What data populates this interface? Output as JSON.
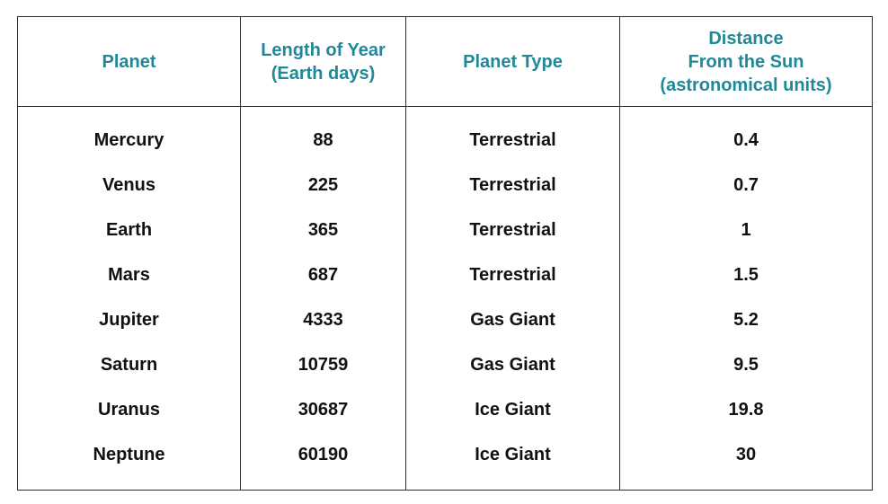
{
  "table": {
    "headers": [
      "Planet",
      "Length of Year\n(Earth days)",
      "Planet Type",
      "Distance\nFrom the Sun\n(astronomical units)"
    ],
    "rows": [
      [
        "Mercury",
        "88",
        "Terrestrial",
        "0.4"
      ],
      [
        "Venus",
        "225",
        "Terrestrial",
        "0.7"
      ],
      [
        "Earth",
        "365",
        "Terrestrial",
        "1"
      ],
      [
        "Mars",
        "687",
        "Terrestrial",
        "1.5"
      ],
      [
        "Jupiter",
        "4333",
        "Gas Giant",
        "5.2"
      ],
      [
        "Saturn",
        "10759",
        "Gas Giant",
        "9.5"
      ],
      [
        "Uranus",
        "30687",
        "Ice Giant",
        "19.8"
      ],
      [
        "Neptune",
        "60190",
        "Ice Giant",
        "30"
      ]
    ]
  },
  "colors": {
    "header_text": "#1f8899",
    "body_text": "#111111",
    "border": "#2b2b2b"
  }
}
